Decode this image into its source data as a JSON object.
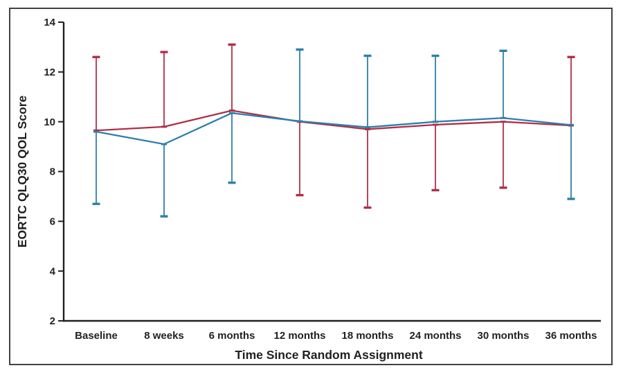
{
  "figure": {
    "background_color": "#ffffff",
    "border_color": "#414042",
    "axis_color": "#231f20"
  },
  "chart_data": {
    "type": "line",
    "title": "",
    "xlabel": "Time Since Random Assignment",
    "ylabel": "EORTC QLQ30 QOL Score",
    "categories": [
      "Baseline",
      "8 weeks",
      "6 months",
      "12 months",
      "18 months",
      "24 months",
      "30 months",
      "36 months"
    ],
    "ylim": [
      2,
      14
    ],
    "yticks": [
      14,
      12,
      10,
      8,
      6,
      4,
      2
    ],
    "grid": false,
    "legend_position": "none",
    "markers": "none",
    "series": [
      {
        "name": "series-red",
        "color": "#ae3049",
        "values": [
          9.65,
          9.8,
          10.45,
          10.0,
          9.7,
          9.88,
          10.0,
          9.85
        ],
        "error_bar_direction": [
          "up",
          "up",
          "up",
          "down",
          "down",
          "down",
          "down",
          "up"
        ],
        "error_bar_limits": [
          12.6,
          12.8,
          13.1,
          7.05,
          6.55,
          7.25,
          7.35,
          12.6
        ]
      },
      {
        "name": "series-blue",
        "color": "#2e7fab",
        "values": [
          9.6,
          9.1,
          10.35,
          10.02,
          9.78,
          10.0,
          10.15,
          9.87
        ],
        "error_bar_direction": [
          "down",
          "down",
          "down",
          "up",
          "up",
          "up",
          "up",
          "down"
        ],
        "error_bar_limits": [
          6.7,
          6.2,
          7.55,
          12.9,
          12.65,
          12.65,
          12.85,
          6.9
        ]
      }
    ]
  }
}
